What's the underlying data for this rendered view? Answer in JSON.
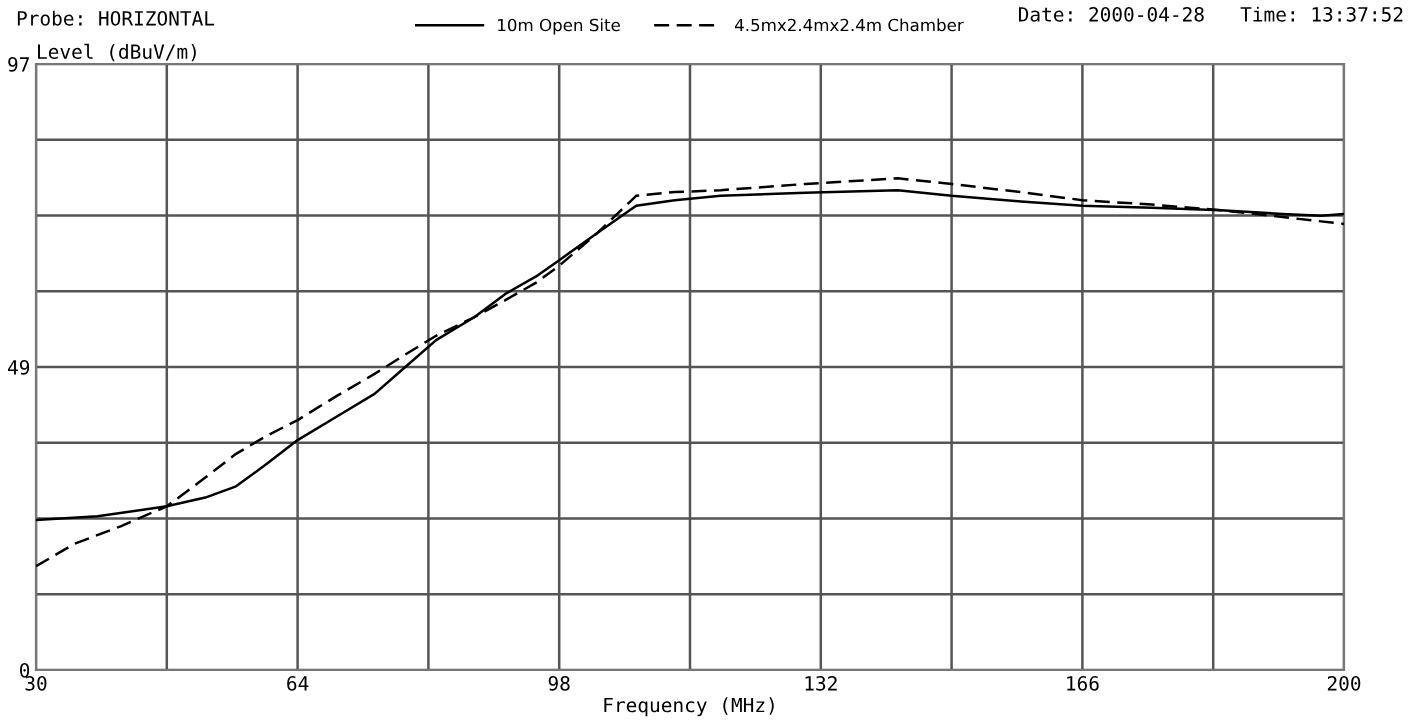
{
  "chart_data": {
    "type": "line",
    "xlabel": "Frequency (MHz)",
    "ylabel": "Level (dBuV/m)",
    "annotations": [
      "Probe: HORIZONTAL",
      "Date: 2000-04-28   Time: 13:37:52"
    ],
    "xlim": [
      30,
      200
    ],
    "ylim": [
      0,
      97
    ],
    "xticks": [
      30,
      {
        "value": 47,
        "label": null
      },
      64,
      {
        "value": 81,
        "label": null
      },
      98,
      {
        "value": 115,
        "label": null
      },
      132,
      {
        "value": 149,
        "label": null
      },
      166,
      {
        "value": 183,
        "label": null
      },
      200
    ],
    "yticks": [
      0,
      {
        "value": 12.125,
        "label": null
      },
      {
        "value": 24.25,
        "label": null
      },
      {
        "value": 36.375,
        "label": null
      },
      {
        "value": 48.5,
        "label": "49"
      },
      {
        "value": 60.625,
        "label": null
      },
      {
        "value": 72.75,
        "label": null
      },
      {
        "value": 84.875,
        "label": null
      },
      97
    ],
    "grid": true,
    "legend": "top",
    "marker": "none",
    "series": [
      {
        "name": "10m Open Site",
        "color": "#000000",
        "line_style": "solid",
        "x": [
          30,
          38,
          47,
          52,
          56,
          60,
          64,
          69,
          74,
          78,
          82,
          87,
          91,
          95,
          98,
          103,
          108,
          113,
          119,
          130,
          142,
          149,
          158,
          166,
          175,
          184,
          192,
          197,
          200
        ],
        "values": [
          24,
          24.6,
          26.2,
          27.6,
          29.4,
          33,
          36.8,
          40.5,
          44.2,
          48.5,
          52.8,
          56.5,
          60.2,
          63,
          65.6,
          70,
          74.3,
          75.2,
          75.9,
          76.4,
          76.8,
          75.9,
          75,
          74.3,
          74,
          73.6,
          73,
          72.7,
          73
        ]
      },
      {
        "name": "4.5mx2.4mx2.4m Chamber",
        "color": "#000000",
        "line_style": "dashed",
        "x": [
          30,
          35,
          41,
          47,
          52,
          56,
          60,
          64,
          69,
          74,
          78,
          82,
          87,
          91,
          95,
          98,
          103,
          108,
          113,
          119,
          130,
          142,
          149,
          158,
          166,
          175,
          184,
          192,
          200
        ],
        "values": [
          16.6,
          20.2,
          23,
          26.2,
          30.8,
          34.6,
          37.5,
          40,
          43.8,
          47.4,
          50.5,
          53.5,
          56.5,
          59.2,
          62,
          64.7,
          70,
          75.9,
          76.5,
          76.8,
          77.8,
          78.7,
          77.8,
          76.5,
          75.2,
          74.5,
          73.6,
          72.5,
          71.4
        ]
      }
    ]
  }
}
